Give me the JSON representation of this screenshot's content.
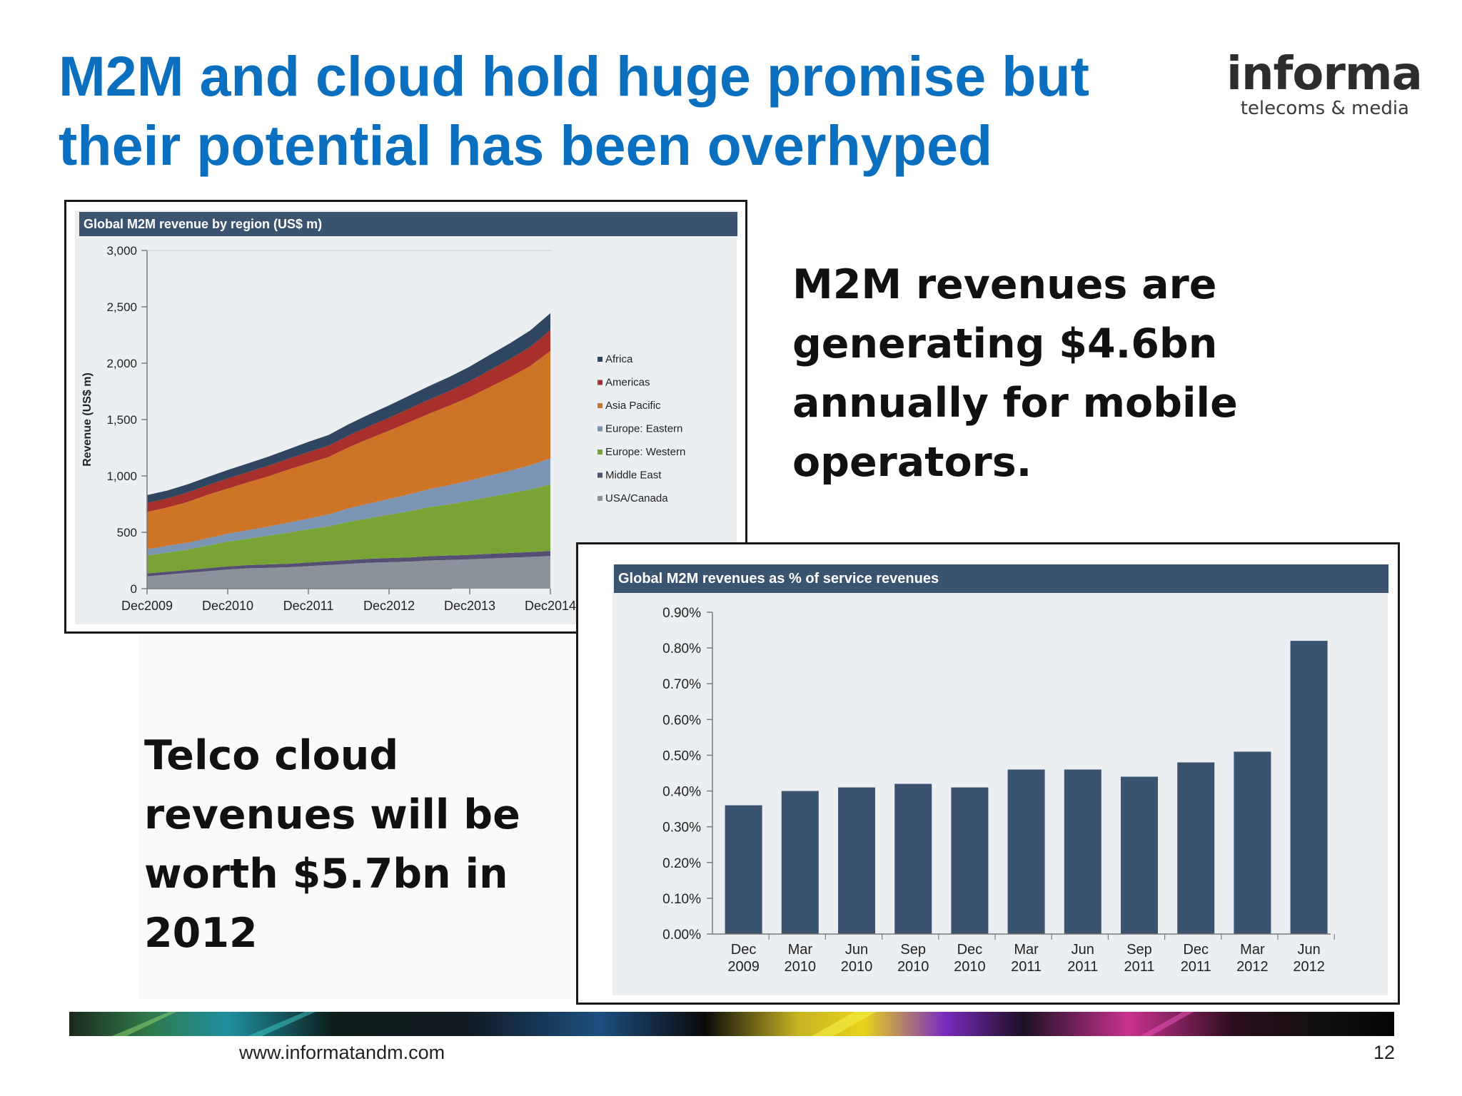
{
  "slide": {
    "title_line1": "M2M and cloud hold huge promise but",
    "title_line2": "their potential has been overhyped",
    "logo_main": "informa",
    "logo_sub": "telecoms & media",
    "text_m2m": [
      "M2M  revenues are",
      "generating $4.6bn",
      "annually for mobile",
      "operators."
    ],
    "text_cloud": [
      "Telco cloud",
      "revenues will be",
      "worth $5.7bn in",
      "2012"
    ],
    "footer_url": "www.informatandm.com",
    "page_number": "12"
  },
  "colors": {
    "title": "#0a6fbf",
    "header_bar": "#3a5470",
    "bar": "#3a5470",
    "africa": "#2e4660",
    "americas": "#a8302c",
    "asia_pacific": "#cd7426",
    "europe_eastern": "#7b94b3",
    "europe_western": "#78a436",
    "middle_east": "#554f74",
    "usa_canada": "#8c929c"
  },
  "chart_data": [
    {
      "type": "area",
      "stacked": true,
      "title": "Global M2M revenue by region (US$ m)",
      "ylabel": "Revenue (US$ m)",
      "xlabel": "",
      "ylim": [
        0,
        3000
      ],
      "yticks": [
        "0",
        "500",
        "1,000",
        "1,500",
        "2,000",
        "2,500",
        "3,000"
      ],
      "yticks_values": [
        0,
        500,
        1000,
        1500,
        2000,
        2500,
        3000
      ],
      "xtick_labels": [
        "Dec2009",
        "Dec2010",
        "Dec2011",
        "Dec2012",
        "Dec2013",
        "Dec2014"
      ],
      "grid": false,
      "legend_position": "right",
      "x": [
        0,
        1,
        2,
        3,
        4,
        5,
        6,
        7,
        8,
        9,
        10,
        11,
        12,
        13,
        14,
        15,
        16,
        17,
        18,
        19,
        20
      ],
      "series": [
        {
          "name": "USA/Canada",
          "color": "#8c929c",
          "values": [
            110,
            125,
            140,
            155,
            170,
            180,
            185,
            190,
            200,
            210,
            220,
            230,
            235,
            240,
            250,
            255,
            260,
            268,
            275,
            282,
            290
          ]
        },
        {
          "name": "Middle East",
          "color": "#554f74",
          "values": [
            25,
            25,
            26,
            27,
            28,
            29,
            30,
            31,
            32,
            33,
            34,
            35,
            36,
            37,
            38,
            39,
            40,
            41,
            42,
            43,
            44
          ]
        },
        {
          "name": "Europe: Western",
          "color": "#78a436",
          "values": [
            160,
            170,
            180,
            200,
            220,
            235,
            255,
            275,
            295,
            310,
            340,
            360,
            385,
            410,
            435,
            455,
            480,
            505,
            530,
            555,
            590
          ]
        },
        {
          "name": "Europe: Eastern",
          "color": "#7b94b3",
          "values": [
            55,
            60,
            62,
            65,
            70,
            75,
            80,
            90,
            95,
            105,
            120,
            130,
            140,
            150,
            160,
            170,
            180,
            190,
            200,
            215,
            230
          ]
        },
        {
          "name": "Asia Pacific",
          "color": "#cd7426",
          "values": [
            330,
            340,
            360,
            385,
            400,
            425,
            445,
            470,
            490,
            510,
            540,
            575,
            605,
            640,
            670,
            705,
            740,
            785,
            830,
            880,
            955
          ]
        },
        {
          "name": "Americas",
          "color": "#a8302c",
          "values": [
            80,
            80,
            85,
            85,
            90,
            90,
            95,
            95,
            100,
            100,
            105,
            110,
            115,
            120,
            125,
            130,
            140,
            150,
            160,
            170,
            185
          ]
        },
        {
          "name": "Africa",
          "color": "#2e4660",
          "values": [
            70,
            70,
            72,
            73,
            75,
            77,
            80,
            85,
            90,
            95,
            100,
            105,
            110,
            115,
            120,
            125,
            130,
            135,
            140,
            145,
            150
          ]
        }
      ],
      "legend": [
        "Africa",
        "Americas",
        "Asia Pacific",
        "Europe: Eastern",
        "Europe: Western",
        "Middle East",
        "USA/Canada"
      ]
    },
    {
      "type": "bar",
      "title": "Global M2M revenues as % of service revenues",
      "xlabel": "",
      "ylabel": "",
      "ylim": [
        0,
        0.9
      ],
      "yticks": [
        "0.00%",
        "0.10%",
        "0.20%",
        "0.30%",
        "0.40%",
        "0.50%",
        "0.60%",
        "0.70%",
        "0.80%",
        "0.90%"
      ],
      "yticks_values": [
        0,
        0.1,
        0.2,
        0.3,
        0.4,
        0.5,
        0.6,
        0.7,
        0.8,
        0.9
      ],
      "grid": false,
      "categories": [
        [
          "Dec",
          "2009"
        ],
        [
          "Mar",
          "2010"
        ],
        [
          "Jun",
          "2010"
        ],
        [
          "Sep",
          "2010"
        ],
        [
          "Dec",
          "2010"
        ],
        [
          "Mar",
          "2011"
        ],
        [
          "Jun",
          "2011"
        ],
        [
          "Sep",
          "2011"
        ],
        [
          "Dec",
          "2011"
        ],
        [
          "Mar",
          "2012"
        ],
        [
          "Jun",
          "2012"
        ]
      ],
      "values": [
        0.36,
        0.4,
        0.41,
        0.42,
        0.41,
        0.46,
        0.46,
        0.44,
        0.48,
        0.51,
        0.82
      ]
    }
  ]
}
